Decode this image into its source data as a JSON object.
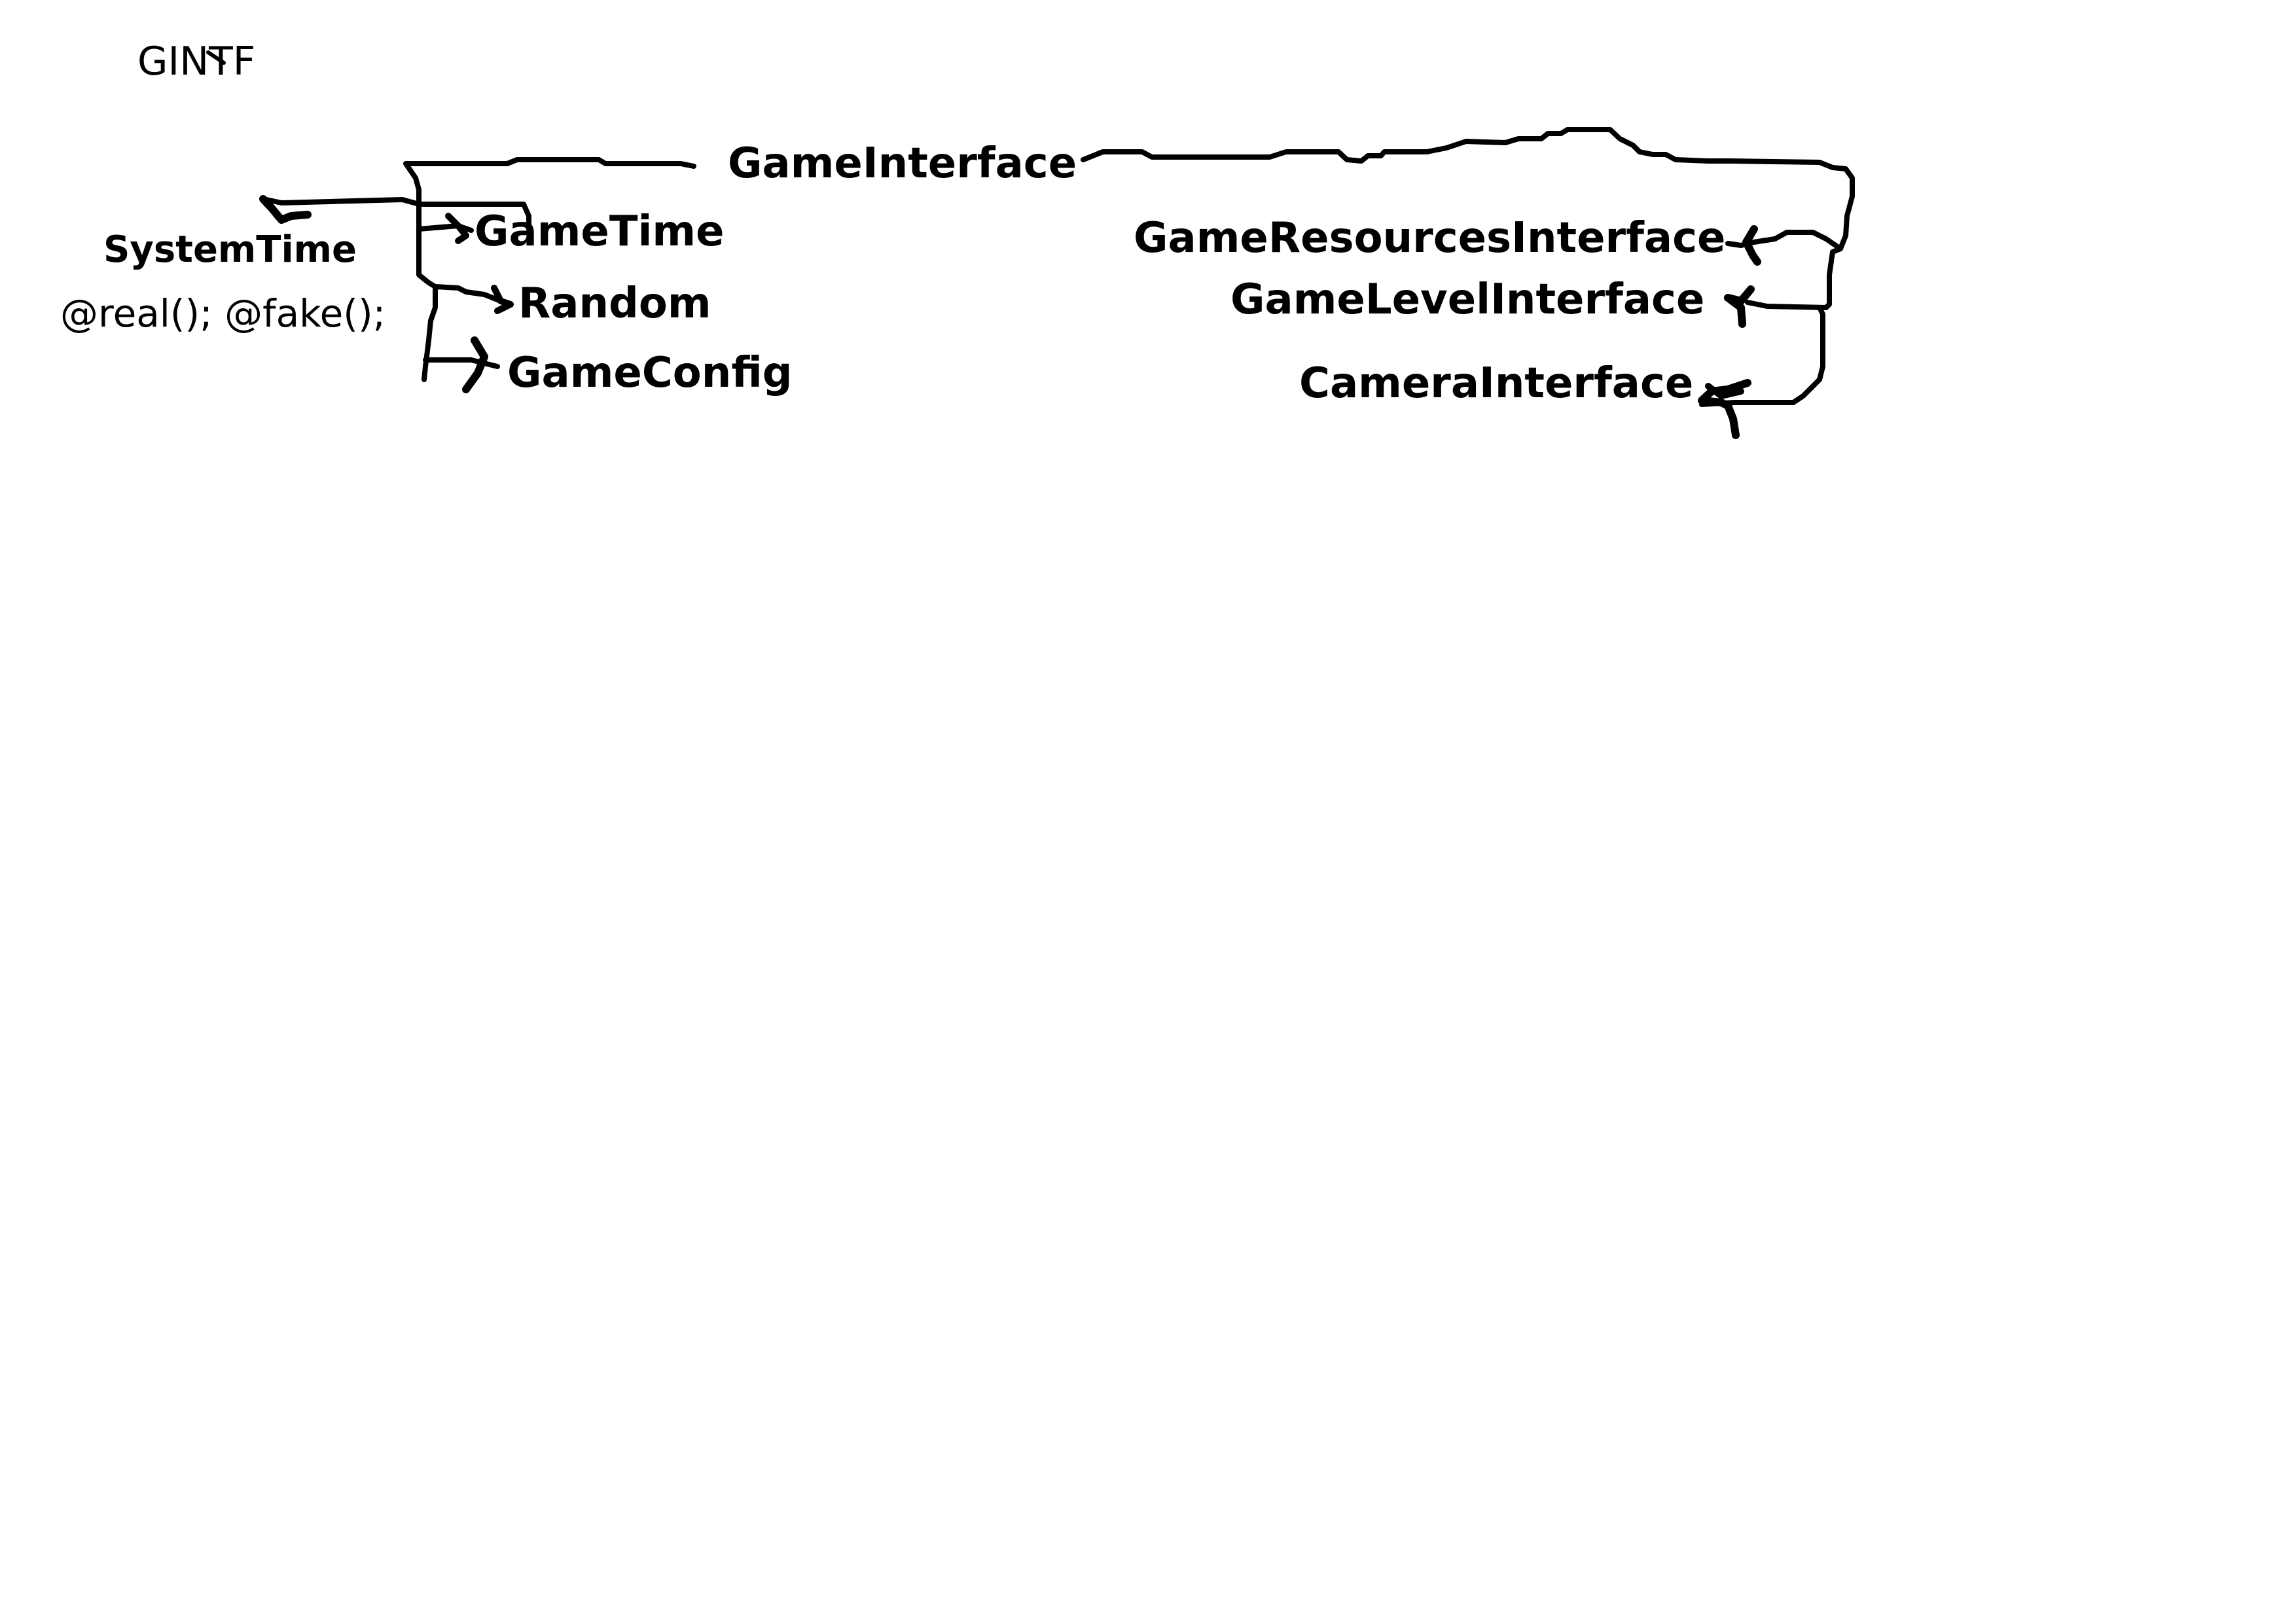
{
  "header": {
    "title": "GINTF"
  },
  "nodes": {
    "game_interface": "GameInterface",
    "system_time": "SystemTime",
    "system_time_methods": "@real(); @fake();",
    "game_time": "GameTime",
    "random": "Random",
    "game_config": "GameConfig",
    "game_resources_interface": "GameResourcesInterface",
    "game_level_interface": "GameLevelInterface",
    "camera_interface": "CameraInterface"
  },
  "colors": {
    "ink": "#000000",
    "background": "#ffffff"
  }
}
